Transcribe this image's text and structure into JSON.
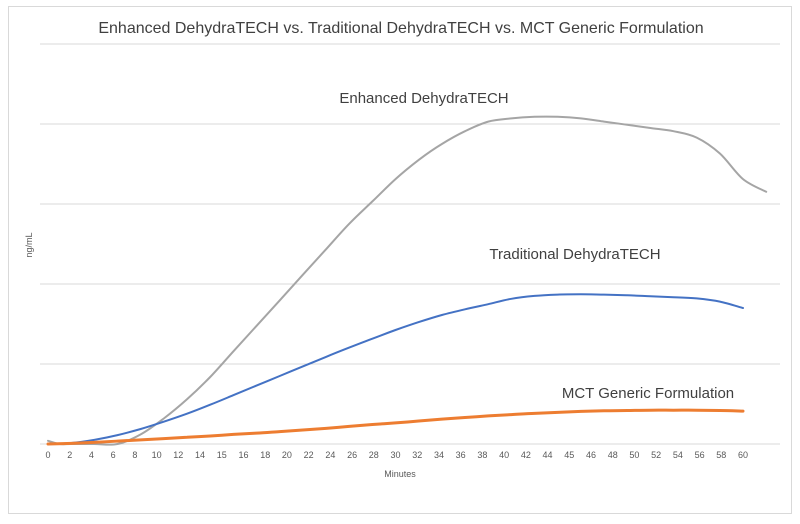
{
  "chart_data": {
    "type": "line",
    "title": "Enhanced DehydraTECH vs. Traditional DehydraTECH vs. MCT Generic Formulation",
    "xlabel": "Minutes",
    "ylabel": "ng/mL",
    "x_ticks": [
      "0",
      "2",
      "4",
      "6",
      "8",
      "10",
      "12",
      "14",
      "15",
      "16",
      "18",
      "20",
      "22",
      "24",
      "26",
      "28",
      "30",
      "32",
      "34",
      "36",
      "38",
      "40",
      "42",
      "44",
      "45",
      "46",
      "48",
      "50",
      "52",
      "54",
      "56",
      "58",
      "60"
    ],
    "ylim": [
      0,
      100
    ],
    "grid": true,
    "legend": "inline labels",
    "series": [
      {
        "name": "Enhanced DehydraTECH",
        "color": "#a5a5a5",
        "points": [
          [
            0,
            1
          ],
          [
            1,
            0
          ],
          [
            2,
            0
          ],
          [
            4,
            0
          ],
          [
            6,
            0
          ],
          [
            8,
            3
          ],
          [
            10,
            8
          ],
          [
            12,
            14
          ],
          [
            14,
            21
          ],
          [
            16,
            29
          ],
          [
            18,
            37
          ],
          [
            20,
            45
          ],
          [
            22,
            53
          ],
          [
            24,
            61
          ],
          [
            26,
            69
          ],
          [
            28,
            76
          ],
          [
            30,
            83
          ],
          [
            32,
            89
          ],
          [
            34,
            94
          ],
          [
            36,
            98
          ],
          [
            38,
            101
          ],
          [
            40,
            102
          ],
          [
            42,
            102.5
          ],
          [
            44,
            102.5
          ],
          [
            46,
            102
          ],
          [
            48,
            101
          ],
          [
            50,
            100
          ],
          [
            52,
            99
          ],
          [
            54,
            98
          ],
          [
            56,
            96
          ],
          [
            58,
            91
          ],
          [
            60,
            83
          ],
          [
            62,
            79
          ]
        ]
      },
      {
        "name": "Traditional DehydraTECH",
        "color": "#4472c4",
        "points": [
          [
            0,
            0
          ],
          [
            2,
            0.3
          ],
          [
            4,
            1.3
          ],
          [
            6,
            2.8
          ],
          [
            8,
            4.7
          ],
          [
            10,
            7
          ],
          [
            12,
            9.5
          ],
          [
            14,
            12.3
          ],
          [
            16,
            15.3
          ],
          [
            18,
            18.3
          ],
          [
            20,
            21.3
          ],
          [
            22,
            24.3
          ],
          [
            24,
            27.3
          ],
          [
            26,
            30.2
          ],
          [
            28,
            33
          ],
          [
            30,
            35.7
          ],
          [
            32,
            38.2
          ],
          [
            34,
            40.4
          ],
          [
            36,
            42.2
          ],
          [
            38,
            43.8
          ],
          [
            40,
            45.5
          ],
          [
            42,
            46.4
          ],
          [
            44,
            46.8
          ],
          [
            46,
            46.9
          ],
          [
            48,
            46.8
          ],
          [
            50,
            46.6
          ],
          [
            52,
            46.3
          ],
          [
            54,
            46
          ],
          [
            56,
            45.6
          ],
          [
            58,
            44.6
          ],
          [
            60,
            42.6
          ]
        ]
      },
      {
        "name": "MCT Generic Formulation",
        "color": "#ed7d31",
        "points": [
          [
            0,
            0
          ],
          [
            2,
            0.2
          ],
          [
            4,
            0.5
          ],
          [
            6,
            0.9
          ],
          [
            8,
            1.3
          ],
          [
            10,
            1.7
          ],
          [
            12,
            2.1
          ],
          [
            14,
            2.5
          ],
          [
            16,
            3
          ],
          [
            18,
            3.4
          ],
          [
            20,
            3.9
          ],
          [
            22,
            4.4
          ],
          [
            24,
            4.9
          ],
          [
            26,
            5.5
          ],
          [
            28,
            6.1
          ],
          [
            30,
            6.6
          ],
          [
            32,
            7.2
          ],
          [
            34,
            7.8
          ],
          [
            36,
            8.3
          ],
          [
            38,
            8.8
          ],
          [
            40,
            9.2
          ],
          [
            42,
            9.6
          ],
          [
            44,
            9.9
          ],
          [
            46,
            10.2
          ],
          [
            48,
            10.4
          ],
          [
            50,
            10.5
          ],
          [
            52,
            10.6
          ],
          [
            54,
            10.6
          ],
          [
            56,
            10.6
          ],
          [
            58,
            10.5
          ],
          [
            60,
            10.3
          ]
        ]
      }
    ]
  }
}
